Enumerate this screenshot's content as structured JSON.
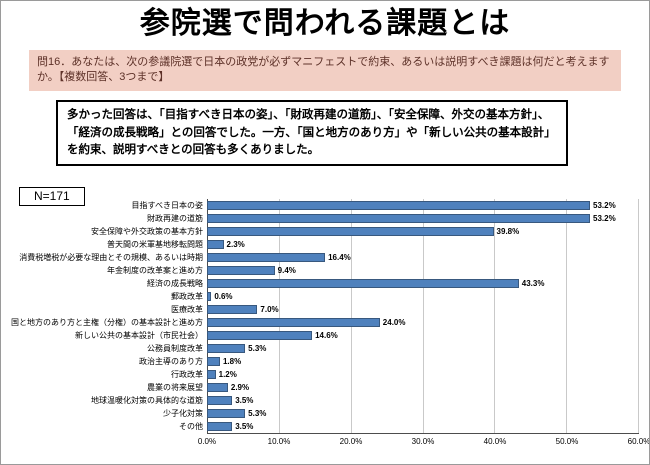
{
  "slide": {
    "title": "参院選で問われる課題とは",
    "question_box": "問16．あなたは、次の参議院選で日本の政党が必ずマニフェストで約束、あるいは説明すべき課題は何だと考えますか。【複数回答、3つまで】",
    "summary_box": "多かった回答は、「目指すべき日本の姿」、「財政再建の道筋」、「安全保障、外交の基本方針」、「経済の成長戦略」との回答でした。一方、「国と地方のあり方」や「新しい公共の基本設計」を約束、説明すべきとの回答も多くありました。",
    "n_label": "N=171"
  },
  "chart_data": {
    "type": "bar",
    "orientation": "horizontal",
    "title": "",
    "xlabel": "",
    "ylabel": "",
    "xlim": [
      0,
      60
    ],
    "grid": true,
    "legend": "none",
    "bar_color": "#4f81bd",
    "x_ticks": [
      "0.0%",
      "10.0%",
      "20.0%",
      "30.0%",
      "40.0%",
      "50.0%",
      "60.0%"
    ],
    "categories": [
      "目指すべき日本の姿",
      "財政再建の道筋",
      "安全保障や外交政策の基本方針",
      "普天間の米軍基地移転問題",
      "消費税増税が必要な理由とその規模、あるいは時期",
      "年金制度の改革案と進め方",
      "経済の成長戦略",
      "郵政改革",
      "医療改革",
      "国と地方のあり方と主権（分権）の基本設計と進め方",
      "新しい公共の基本設計（市民社会）",
      "公務員制度改革",
      "政治主導のあり方",
      "行政改革",
      "農業の将来展望",
      "地球温暖化対策の具体的な道筋",
      "少子化対策",
      "その他"
    ],
    "values": [
      53.2,
      53.2,
      39.8,
      2.3,
      16.4,
      9.4,
      43.3,
      0.6,
      7.0,
      24.0,
      14.6,
      5.3,
      1.8,
      1.2,
      2.9,
      3.5,
      5.3,
      3.5
    ],
    "value_labels": [
      "53.2%",
      "53.2%",
      "39.8%",
      "2.3%",
      "16.4%",
      "9.4%",
      "43.3%",
      "0.6%",
      "7.0%",
      "24.0%",
      "14.6%",
      "5.3%",
      "1.8%",
      "1.2%",
      "2.9%",
      "3.5%",
      "5.3%",
      "3.5%"
    ]
  }
}
